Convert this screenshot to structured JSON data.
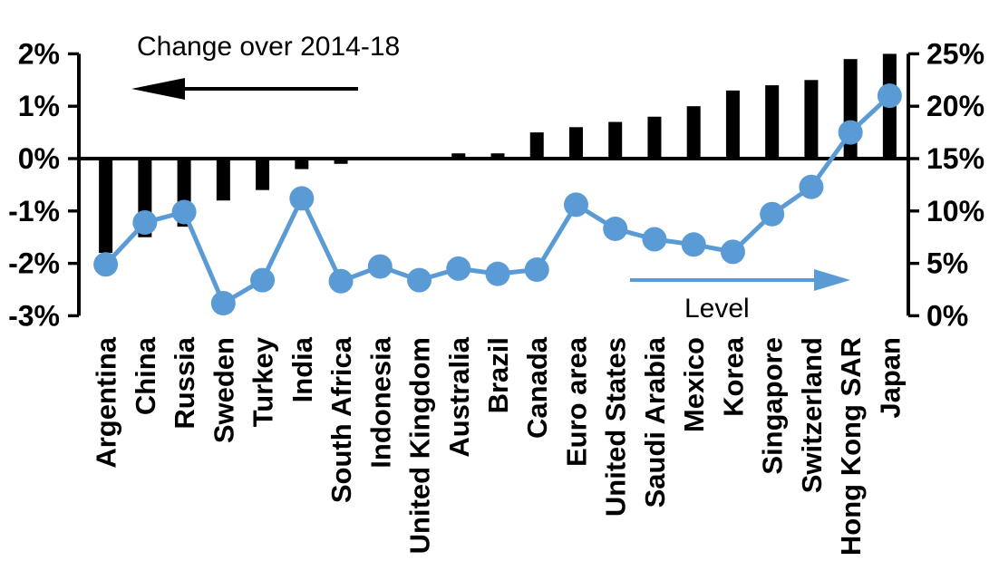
{
  "annotations": {
    "change_label": "Change over 2014-18",
    "level_label": "Level"
  },
  "colors": {
    "bar": "#000000",
    "line": "#5B9BD5",
    "axis": "#000000",
    "background": "#FFFFFF"
  },
  "chart_data": {
    "type": "combo-bar-line",
    "categories": [
      "Argentina",
      "China",
      "Russia",
      "Sweden",
      "Turkey",
      "India",
      "South Africa",
      "Indonesia",
      "United Kingdom",
      "Australia",
      "Brazil",
      "Canada",
      "Euro area",
      "United States",
      "Saudi Arabia",
      "Mexico",
      "Korea",
      "Singapore",
      "Switzerland",
      "Hong Kong SAR",
      "Japan"
    ],
    "series": [
      {
        "name": "Change over 2014-18",
        "type": "bar",
        "axis": "left",
        "color": "#000000",
        "values": [
          -1.8,
          -1.5,
          -1.3,
          -0.8,
          -0.6,
          -0.2,
          -0.1,
          0.0,
          0.0,
          0.1,
          0.1,
          0.5,
          0.6,
          0.7,
          0.8,
          1.0,
          1.3,
          1.4,
          1.5,
          1.9,
          2.0
        ]
      },
      {
        "name": "Level",
        "type": "line",
        "axis": "right",
        "color": "#5B9BD5",
        "values": [
          4.9,
          8.9,
          9.9,
          1.2,
          3.4,
          11.2,
          3.3,
          4.7,
          3.4,
          4.5,
          4.0,
          4.4,
          10.6,
          8.3,
          7.3,
          6.8,
          6.1,
          9.7,
          12.3,
          17.5,
          21.0
        ]
      }
    ],
    "left_axis": {
      "min": -3,
      "max": 2,
      "tick_step": 1,
      "tick_labels": [
        "2%",
        "1%",
        "0%",
        "-1%",
        "-2%",
        "-3%"
      ]
    },
    "right_axis": {
      "min": 0,
      "max": 25,
      "tick_step": 5,
      "tick_labels": [
        "25%",
        "20%",
        "15%",
        "10%",
        "5%",
        "0%"
      ]
    },
    "grid": false,
    "legend": false,
    "zero_line": true
  }
}
